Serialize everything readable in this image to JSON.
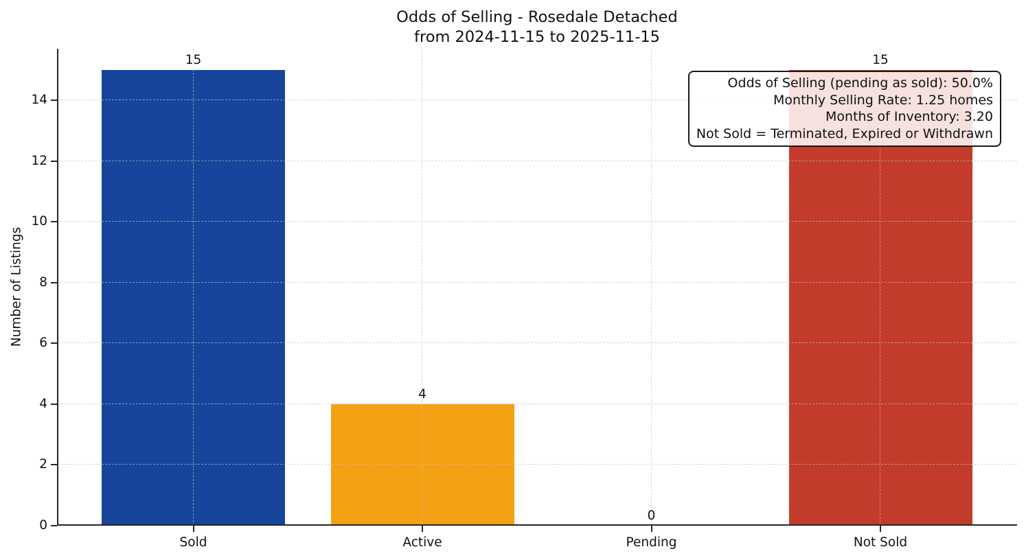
{
  "page": {
    "background": "#ffffff"
  },
  "chart_data": {
    "type": "bar",
    "title": "Odds of Selling - Rosedale Detached",
    "subtitle": "from 2024-11-15 to 2025-11-15",
    "categories": [
      "Sold",
      "Active",
      "Pending",
      "Not Sold"
    ],
    "values": [
      15,
      4,
      0,
      15
    ],
    "value_labels": [
      "15",
      "4",
      "0",
      "15"
    ],
    "bar_colors": [
      "#16459b",
      "#f5a114",
      null,
      "#c23b2b"
    ],
    "xlabel": "",
    "ylabel": "Number of Listings",
    "ylim": [
      0,
      15.7
    ],
    "yticks": [
      0,
      2,
      4,
      6,
      8,
      10,
      12,
      14
    ],
    "grid": true,
    "grid_style": "dashed",
    "legend": null,
    "annotation": {
      "position": "top-right",
      "lines": [
        "Odds of Selling (pending as sold): 50.0%",
        "Monthly Selling Rate: 1.25 homes",
        "Months of Inventory: 3.20",
        "Not Sold = Terminated, Expired or Withdrawn"
      ]
    },
    "colors": {
      "axis": "#262626",
      "text": "#111111",
      "grid": "#c3c3c3",
      "annotation_border": "#1a1a1a",
      "annotation_background": "rgba(255,255,255,0.85)"
    }
  }
}
